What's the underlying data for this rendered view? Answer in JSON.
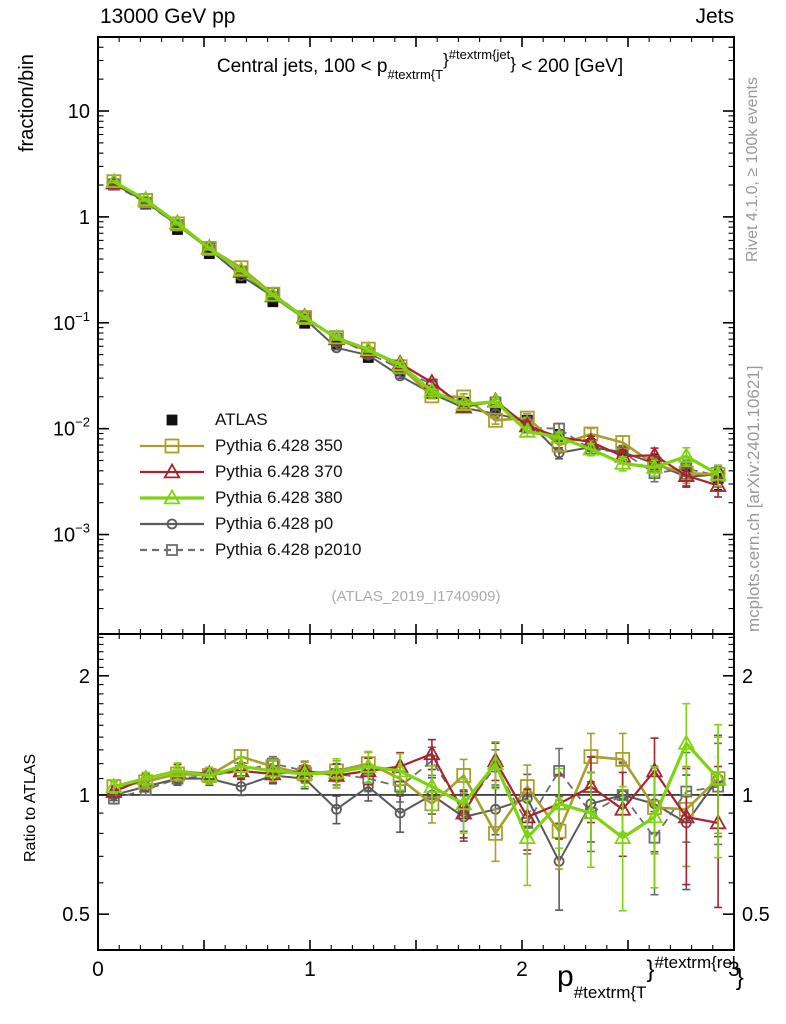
{
  "header": {
    "left": "13000 GeV pp",
    "right": "Jets"
  },
  "top_panel": {
    "title_parts": {
      "prefix": "Central jets, 100 < p",
      "sub": "#textrm{T",
      "brace_open": "}",
      "sup": "#textrm{jet",
      "brace_close": "}",
      "suffix": " < 200 [GeV]"
    },
    "ylabel": "fraction/bin",
    "watermark": "(ATLAS_2019_I1740909)"
  },
  "ratio_panel": {
    "ylabel": "Ratio to ATLAS"
  },
  "x_axis": {
    "title_parts": {
      "main": "p",
      "sub": "#textrm{T",
      "brace_open": "}",
      "sup": "#textrm{rel",
      "brace_close": "}"
    }
  },
  "side_notes": {
    "right_top": "Rivet 4.1.0, ≥ 100k events",
    "right_bottom": "mcplots.cern.ch [arXiv:2401.10621]"
  },
  "colors": {
    "atlas": "#111111",
    "tune350": "#a8a02c",
    "tune370": "#a8232e",
    "tune380": "#7dd50f",
    "p0": "#5a5a5a",
    "p2010": "#6e6e6e",
    "axis": "#000000",
    "note_gray": "#999999",
    "watermark_gray": "#ababab"
  },
  "legend": [
    {
      "label": "ATLAS",
      "marker": "square",
      "filled": true,
      "color": "#111111",
      "line": "none",
      "ms": 9
    },
    {
      "label": "Pythia 6.428 350",
      "marker": "square",
      "filled": false,
      "color": "#a8a02c",
      "line": "solid",
      "ms": 13
    },
    {
      "label": "Pythia 6.428 370",
      "marker": "triangle",
      "filled": false,
      "color": "#a8232e",
      "line": "solid",
      "ms": 12
    },
    {
      "label": "Pythia 6.428 380",
      "marker": "triangle",
      "filled": false,
      "color": "#7dd50f",
      "line": "solid",
      "ms": 12
    },
    {
      "label": "Pythia 6.428 p0",
      "marker": "circle",
      "filled": false,
      "color": "#5a5a5a",
      "line": "solid",
      "ms": 9
    },
    {
      "label": "Pythia 6.428 p2010",
      "marker": "square",
      "filled": false,
      "color": "#6e6e6e",
      "line": "dashed",
      "ms": 10
    }
  ],
  "chart_data": [
    {
      "type": "line",
      "panel": "main",
      "title": "Central jets, 100 < p_{#textrm{T}}^{#textrm{jet}} < 200 [GeV]",
      "ylabel": "fraction/bin",
      "yscale": "log",
      "xlim": [
        0,
        3
      ],
      "ylim": [
        0.000115,
        50
      ],
      "grid": false,
      "legend_position": "middle-left",
      "x_ticks_labeled": [
        0,
        1,
        2,
        3
      ],
      "y_ticks_labeled": [
        10,
        1,
        0.1,
        0.01,
        0.001
      ],
      "x": [
        0.075,
        0.225,
        0.375,
        0.525,
        0.675,
        0.825,
        0.975,
        1.125,
        1.275,
        1.425,
        1.575,
        1.725,
        1.875,
        2.025,
        2.175,
        2.325,
        2.475,
        2.625,
        2.775,
        2.925
      ],
      "rel_err": [
        0.02,
        0.02,
        0.02,
        0.025,
        0.03,
        0.03,
        0.035,
        0.04,
        0.045,
        0.05,
        0.06,
        0.07,
        0.08,
        0.1,
        0.12,
        0.13,
        0.15,
        0.17,
        0.2,
        0.22
      ],
      "series": [
        {
          "name": "ATLAS",
          "color": "#111111",
          "marker": "square",
          "filled": true,
          "line": "none",
          "lw": 0,
          "ms": 9,
          "values": [
            2.05,
            1.32,
            0.76,
            0.45,
            0.265,
            0.158,
            0.099,
            0.063,
            0.047,
            0.035,
            0.0215,
            0.0178,
            0.015,
            0.012,
            0.0087,
            0.0071,
            0.006,
            0.0049,
            0.0041,
            0.0034
          ]
        },
        {
          "name": "Pythia 6.428 p2010",
          "color": "#6e6e6e",
          "marker": "square",
          "filled": false,
          "line": "dashed",
          "lw": 1.8,
          "ms": 10,
          "values": [
            2.01,
            1.36,
            0.836,
            0.504,
            0.305,
            0.19,
            0.114,
            0.0712,
            0.0517,
            0.0368,
            0.0262,
            0.0164,
            0.0177,
            0.0102,
            0.01,
            0.0064,
            0.006,
            0.0038,
            0.0042,
            0.0036
          ]
        },
        {
          "name": "Pythia 6.428 p0",
          "color": "#5a5a5a",
          "marker": "circle",
          "filled": false,
          "line": "solid",
          "lw": 2.0,
          "ms": 9,
          "values": [
            2.05,
            1.39,
            0.836,
            0.495,
            0.278,
            0.177,
            0.109,
            0.058,
            0.0494,
            0.0315,
            0.0215,
            0.0157,
            0.0138,
            0.0118,
            0.0059,
            0.0067,
            0.006,
            0.0047,
            0.0035,
            0.0037
          ]
        },
        {
          "name": "Pythia 6.428 350",
          "color": "#a8a02c",
          "marker": "square",
          "filled": false,
          "line": "solid",
          "lw": 2.6,
          "ms": 13,
          "values": [
            2.15,
            1.43,
            0.859,
            0.504,
            0.331,
            0.186,
            0.112,
            0.0725,
            0.0564,
            0.0385,
            0.0204,
            0.0199,
            0.012,
            0.0126,
            0.007,
            0.0089,
            0.0074,
            0.0046,
            0.0038,
            0.0037
          ]
        },
        {
          "name": "Pythia 6.428 370",
          "color": "#a8232e",
          "marker": "triangle",
          "filled": false,
          "line": "solid",
          "lw": 2.2,
          "ms": 12,
          "values": [
            2.09,
            1.45,
            0.874,
            0.509,
            0.305,
            0.179,
            0.114,
            0.0706,
            0.0541,
            0.0413,
            0.0273,
            0.016,
            0.0183,
            0.0106,
            0.0083,
            0.0075,
            0.0055,
            0.0056,
            0.0036,
            0.0029
          ]
        },
        {
          "name": "Pythia 6.428 380",
          "color": "#7dd50f",
          "marker": "triangle",
          "filled": false,
          "line": "solid",
          "lw": 3.2,
          "ms": 12,
          "values": [
            2.15,
            1.45,
            0.874,
            0.504,
            0.313,
            0.182,
            0.112,
            0.0718,
            0.0555,
            0.0403,
            0.0226,
            0.0169,
            0.018,
            0.0094,
            0.0083,
            0.0064,
            0.0047,
            0.0043,
            0.0055,
            0.0037
          ]
        }
      ]
    },
    {
      "type": "line",
      "panel": "ratio",
      "ylabel": "Ratio to ATLAS",
      "xlabel": "p_{#textrm{T}}^{#textrm{rel}}",
      "yscale": "log",
      "xlim": [
        0,
        3
      ],
      "ylim": [
        0.406,
        2.55
      ],
      "baseline": 1.0,
      "y_ticks_labeled": [
        2,
        1,
        0.5
      ],
      "x_ticks_labeled": [
        0,
        1,
        2,
        3
      ],
      "x": [
        0.075,
        0.225,
        0.375,
        0.525,
        0.675,
        0.825,
        0.975,
        1.125,
        1.275,
        1.425,
        1.575,
        1.725,
        1.875,
        2.025,
        2.175,
        2.325,
        2.475,
        2.625,
        2.775,
        2.925
      ],
      "err_base": [
        0.03,
        0.03,
        0.04,
        0.04,
        0.05,
        0.05,
        0.06,
        0.07,
        0.08,
        0.09,
        0.1,
        0.11,
        0.12,
        0.14,
        0.16,
        0.18,
        0.2,
        0.22,
        0.26,
        0.3
      ],
      "series": [
        {
          "name": "Pythia 6.428 p2010",
          "color": "#6e6e6e",
          "marker": "square",
          "filled": false,
          "line": "dashed",
          "lw": 1.8,
          "ms": 10,
          "err_scale": 1.0,
          "values": [
            0.98,
            1.03,
            1.1,
            1.12,
            1.15,
            1.2,
            1.15,
            1.13,
            1.1,
            1.05,
            1.22,
            0.92,
            1.18,
            0.85,
            1.15,
            0.9,
            1.0,
            0.78,
            1.02,
            1.05
          ]
        },
        {
          "name": "Pythia 6.428 p0",
          "color": "#5a5a5a",
          "marker": "circle",
          "filled": false,
          "line": "solid",
          "lw": 2.0,
          "ms": 9,
          "err_scale": 1.05,
          "values": [
            1.0,
            1.05,
            1.1,
            1.1,
            1.05,
            1.12,
            1.1,
            0.92,
            1.05,
            0.9,
            1.0,
            0.88,
            0.92,
            0.98,
            0.68,
            0.95,
            1.0,
            0.95,
            0.85,
            1.1
          ]
        },
        {
          "name": "Pythia 6.428 350",
          "color": "#a8a02c",
          "marker": "square",
          "filled": false,
          "line": "solid",
          "lw": 2.6,
          "ms": 13,
          "err_scale": 1.0,
          "values": [
            1.05,
            1.08,
            1.13,
            1.12,
            1.25,
            1.18,
            1.13,
            1.15,
            1.2,
            1.1,
            0.95,
            1.12,
            0.8,
            1.05,
            0.81,
            1.25,
            1.23,
            0.93,
            0.92,
            1.1
          ]
        },
        {
          "name": "Pythia 6.428 370",
          "color": "#a8232e",
          "marker": "triangle",
          "filled": false,
          "line": "solid",
          "lw": 2.2,
          "ms": 12,
          "err_scale": 1.1,
          "values": [
            1.02,
            1.1,
            1.15,
            1.13,
            1.15,
            1.13,
            1.15,
            1.12,
            1.15,
            1.18,
            1.27,
            0.9,
            1.22,
            0.88,
            0.95,
            1.05,
            0.92,
            1.15,
            0.88,
            0.85
          ]
        },
        {
          "name": "Pythia 6.428 380",
          "color": "#7dd50f",
          "marker": "triangle",
          "filled": false,
          "line": "solid",
          "lw": 3.2,
          "ms": 12,
          "err_scale": 1.35,
          "values": [
            1.05,
            1.1,
            1.15,
            1.12,
            1.18,
            1.15,
            1.13,
            1.14,
            1.18,
            1.15,
            1.05,
            0.95,
            1.2,
            0.78,
            0.95,
            0.9,
            0.78,
            0.88,
            1.35,
            1.1
          ]
        }
      ]
    }
  ]
}
